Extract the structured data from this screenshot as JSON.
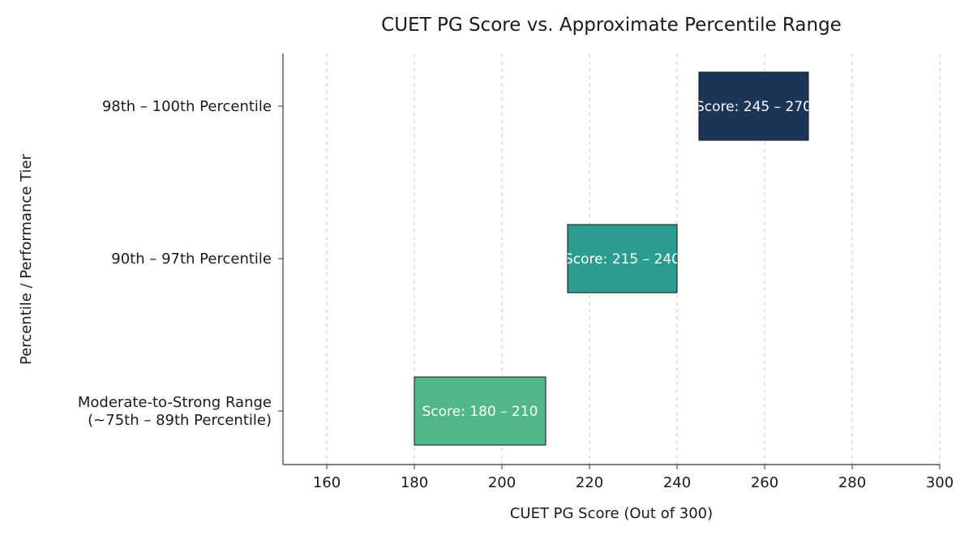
{
  "chart_data": {
    "type": "bar",
    "orientation": "horizontal",
    "title": "CUET PG Score vs. Approximate Percentile Range",
    "xlabel": "CUET PG Score (Out of 300)",
    "ylabel": "Percentile / Performance Tier",
    "xlim": [
      150,
      300
    ],
    "xticks": [
      160,
      180,
      200,
      220,
      240,
      260,
      280,
      300
    ],
    "grid": "vertical dashed",
    "categories": [
      [
        "98th – 100th Percentile"
      ],
      [
        "90th – 97th Percentile"
      ],
      [
        "Moderate-to-Strong Range",
        "(~75th – 89th Percentile)"
      ]
    ],
    "ranges": [
      {
        "start": 245,
        "end": 270,
        "label": "Score: 245 – 270",
        "color": "#1c3557"
      },
      {
        "start": 215,
        "end": 240,
        "label": "Score: 215 – 240",
        "color": "#2a9d8f"
      },
      {
        "start": 180,
        "end": 210,
        "label": "Score: 180 – 210",
        "color": "#52b788"
      }
    ]
  }
}
